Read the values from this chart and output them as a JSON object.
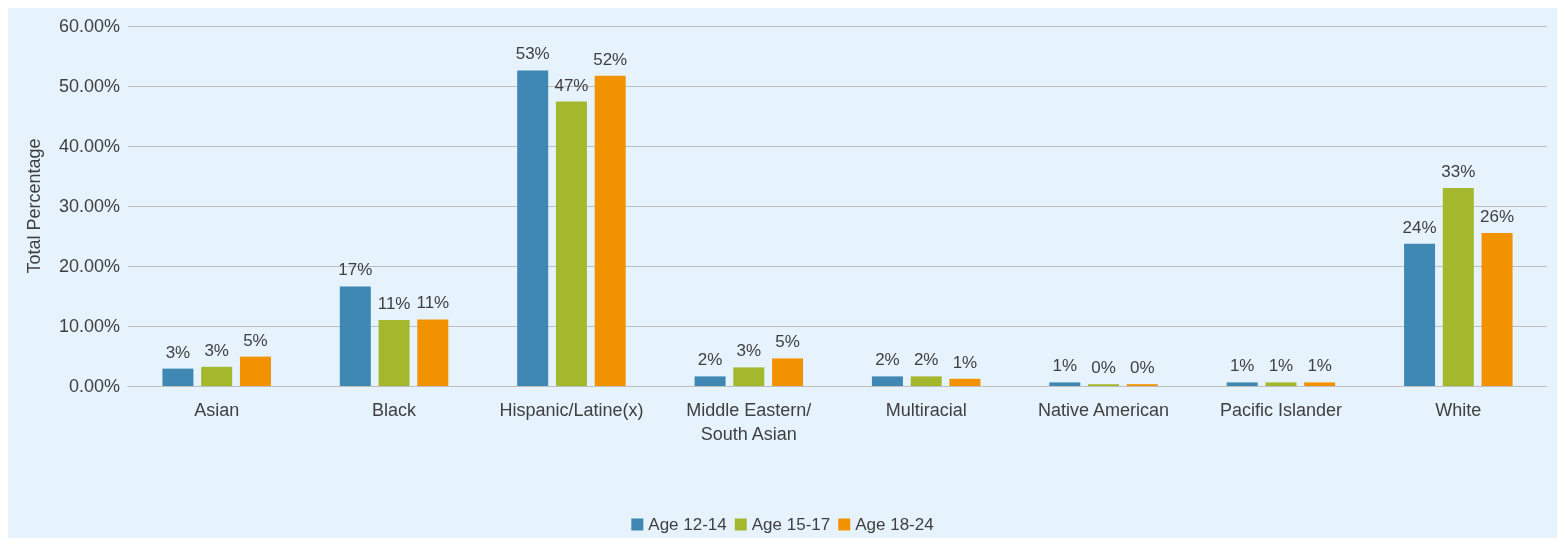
{
  "chart_data": {
    "type": "bar",
    "ylabel": "Total Percentage",
    "categories": [
      "Asian",
      "Black",
      "Hispanic/Latine(x)",
      "Middle Eastern/South Asian",
      "Multiracial",
      "Native American",
      "Pacific Islander",
      "White"
    ],
    "series": [
      {
        "name": "Age 12-14",
        "color": "#3f88b3",
        "values": [
          2.9,
          16.6,
          52.6,
          1.6,
          1.6,
          0.6,
          0.6,
          23.7
        ],
        "value_labels": [
          "3%",
          "17%",
          "53%",
          "2%",
          "2%",
          "1%",
          "1%",
          "24%"
        ]
      },
      {
        "name": "Age 15-17",
        "color": "#a3b82c",
        "values": [
          3.2,
          11.0,
          47.4,
          3.1,
          1.6,
          0.3,
          0.6,
          33.0
        ],
        "value_labels": [
          "3%",
          "11%",
          "47%",
          "3%",
          "2%",
          "0%",
          "1%",
          "33%"
        ]
      },
      {
        "name": "Age 18-24",
        "color": "#f39200",
        "values": [
          4.9,
          11.1,
          51.7,
          4.6,
          1.2,
          0.3,
          0.6,
          25.5
        ],
        "value_labels": [
          "5%",
          "11%",
          "52%",
          "5%",
          "1%",
          "0%",
          "1%",
          "26%"
        ]
      }
    ],
    "ylim": [
      0,
      60
    ],
    "yticks": [
      {
        "value": 0,
        "label": "0.00%"
      },
      {
        "value": 10,
        "label": "10.00%"
      },
      {
        "value": 20,
        "label": "20.00%"
      },
      {
        "value": 30,
        "label": "30.00%"
      },
      {
        "value": 40,
        "label": "40.00%"
      },
      {
        "value": 50,
        "label": "50.00%"
      },
      {
        "value": 60,
        "label": "60.00%"
      }
    ],
    "grid": "y",
    "legend": "bottom"
  }
}
